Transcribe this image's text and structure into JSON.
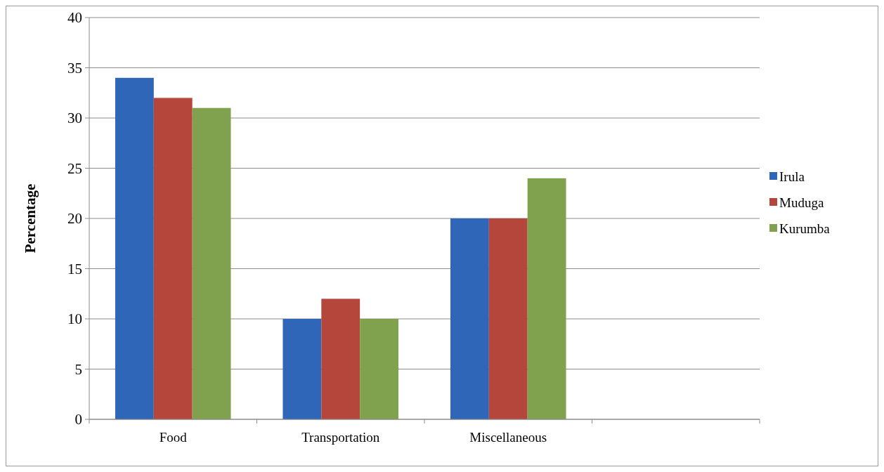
{
  "chart_data": {
    "type": "bar",
    "ylabel": "Percentage",
    "categories": [
      "Food",
      "Transportation",
      "Miscellaneous",
      null
    ],
    "series": [
      {
        "name": "Irula",
        "color": "#2f66b8",
        "values": [
          34,
          10,
          20,
          null
        ]
      },
      {
        "name": "Muduga",
        "color": "#b4463b",
        "values": [
          32,
          12,
          20,
          null
        ]
      },
      {
        "name": "Kurumba",
        "color": "#80a24f",
        "values": [
          31,
          10,
          24,
          null
        ]
      }
    ],
    "ylim": [
      0,
      40
    ],
    "yticks": [
      0,
      5,
      10,
      15,
      20,
      25,
      30,
      35,
      40
    ],
    "grid": "y",
    "legend": "right"
  }
}
